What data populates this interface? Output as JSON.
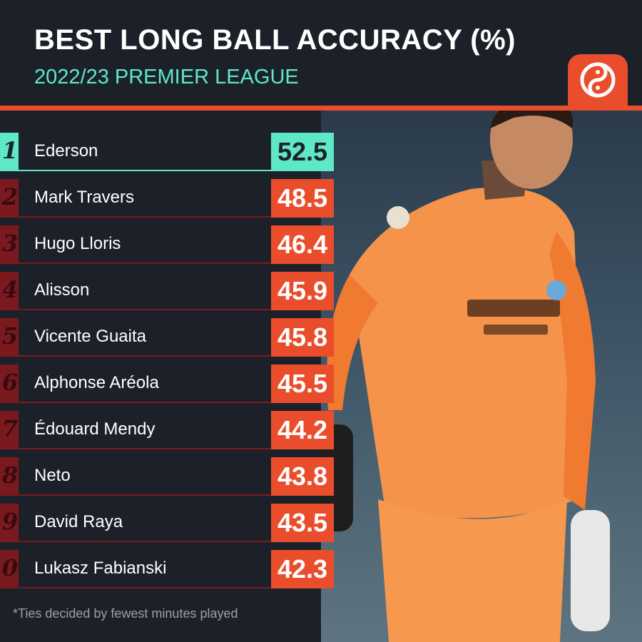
{
  "header": {
    "title": "BEST LONG BALL ACCURACY (%)",
    "subtitle": "2022/23 PREMIER LEAGUE"
  },
  "footnote": "*Ties decided by fewest minutes played",
  "colors": {
    "background": "#1c2129",
    "accent": "#ea4d2c",
    "highlight": "#5ee8c8",
    "rank_bg": "#7a1a1f"
  },
  "icons": {
    "logo": "yin-yang-logo-icon",
    "player_photo": "goalkeeper-photo"
  },
  "chart_data": {
    "type": "table",
    "title": "BEST LONG BALL ACCURACY (%)",
    "subtitle": "2022/23 PREMIER LEAGUE",
    "rows": [
      {
        "rank": "1",
        "player": "Ederson",
        "value": "52.5"
      },
      {
        "rank": "2",
        "player": "Mark Travers",
        "value": "48.5"
      },
      {
        "rank": "3",
        "player": "Hugo Lloris",
        "value": "46.4"
      },
      {
        "rank": "4",
        "player": "Alisson",
        "value": "45.9"
      },
      {
        "rank": "5",
        "player": "Vicente Guaita",
        "value": "45.8"
      },
      {
        "rank": "6",
        "player": "Alphonse Aréola",
        "value": "45.5"
      },
      {
        "rank": "7",
        "player": "Édouard Mendy",
        "value": "44.2"
      },
      {
        "rank": "8",
        "player": "Neto",
        "value": "43.8"
      },
      {
        "rank": "9",
        "player": "David Raya",
        "value": "43.5"
      },
      {
        "rank": "0",
        "player": "Lukasz Fabianski",
        "value": "42.3"
      }
    ]
  }
}
